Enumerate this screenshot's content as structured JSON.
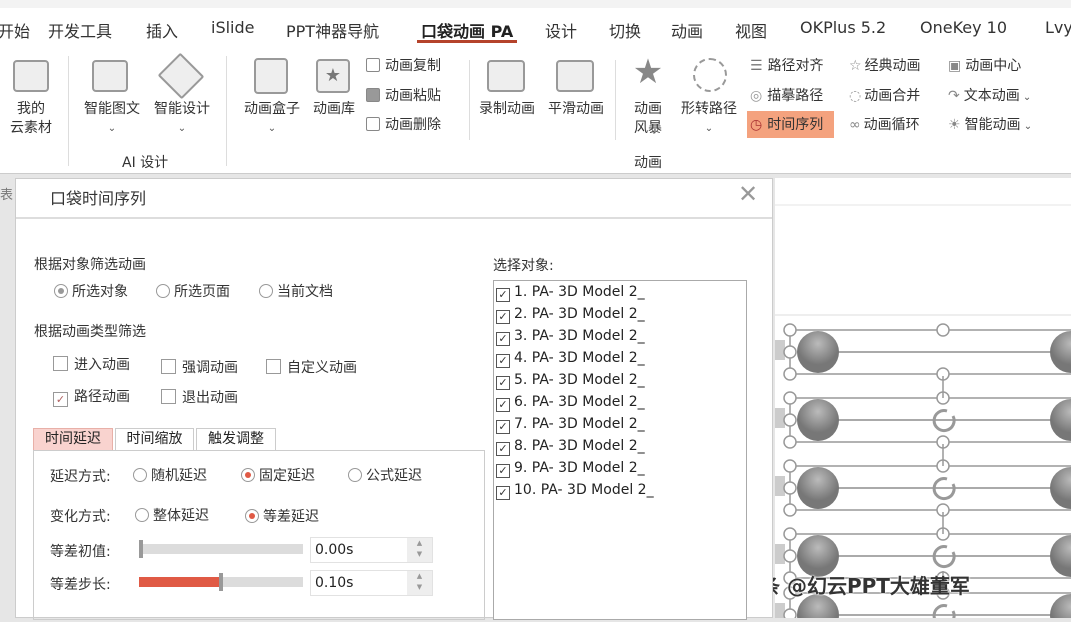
{
  "ribbon_tabs": [
    "开始",
    "开发工具",
    "插入",
    "iSlide",
    "PPT神器导航",
    "口袋动画 PA",
    "设计",
    "切换",
    "动画",
    "视图",
    "OKPlus 5.2",
    "OneKey 10",
    "Lvy"
  ],
  "active_tab": "口袋动画 PA",
  "ribbon": {
    "my_cloud": [
      "我的",
      "云素材"
    ],
    "smart_graphic": "智能图文",
    "smart_design": "智能设计",
    "ai_group": "AI 设计",
    "anim_box": "动画盒子",
    "anim_lib": "动画库",
    "anim_copy": "动画复制",
    "anim_paste": "动画粘贴",
    "anim_delete": "动画删除",
    "record": "录制动画",
    "smooth": "平滑动画",
    "storm": [
      "动画",
      "风暴"
    ],
    "morph_path": "形转路径",
    "path_align": "路径对齐",
    "trace_path": "描摹路径",
    "time_seq": "时间序列",
    "classic": "经典动画",
    "merge": "动画合并",
    "loop": "动画循环",
    "center": "动画中心",
    "text_anim": "文本动画",
    "smart_anim": "智能动画",
    "anim_group": "动画",
    "highlight_color": "#f4a27e"
  },
  "side_label": "表",
  "dialog": {
    "title": "口袋时间序列",
    "filter_obj_label": "根据对象筛选动画",
    "obj_options": [
      {
        "label": "所选对象",
        "selected": true
      },
      {
        "label": "所选页面",
        "selected": false
      },
      {
        "label": "当前文档",
        "selected": false
      }
    ],
    "filter_type_label": "根据动画类型筛选",
    "type_options": [
      {
        "label": "进入动画",
        "checked": false
      },
      {
        "label": "强调动画",
        "checked": false
      },
      {
        "label": "自定义动画",
        "checked": false
      },
      {
        "label": "路径动画",
        "checked": true
      },
      {
        "label": "退出动画",
        "checked": false
      }
    ],
    "tabs": [
      "时间延迟",
      "时间缩放",
      "触发调整"
    ],
    "active_tab": "时间延迟",
    "delay_mode_label": "延迟方式:",
    "delay_modes": [
      {
        "label": "随机延迟",
        "selected": false
      },
      {
        "label": "固定延迟",
        "selected": true
      },
      {
        "label": "公式延迟",
        "selected": false
      }
    ],
    "change_mode_label": "变化方式:",
    "change_modes": [
      {
        "label": "整体延迟",
        "selected": false
      },
      {
        "label": "等差延迟",
        "selected": true
      }
    ],
    "init_label": "等差初值:",
    "init_value": "0.00s",
    "init_slider": 0,
    "step_label": "等差步长:",
    "step_value": "0.10s",
    "step_slider": 0.5,
    "select_label": "选择对象:",
    "objects": [
      "1. PA- 3D Model 2_",
      "2. PA- 3D Model 2_",
      "3. PA- 3D Model 2_",
      "4. PA- 3D Model 2_",
      "5. PA- 3D Model 2_",
      "6. PA- 3D Model 2_",
      "7. PA- 3D Model 2_",
      "8. PA- 3D Model 2_",
      "9. PA- 3D Model 2_",
      "10. PA- 3D Model 2_"
    ],
    "accent": "#e05a45"
  },
  "watermark": "头条 @幻云PPT大雄董军"
}
